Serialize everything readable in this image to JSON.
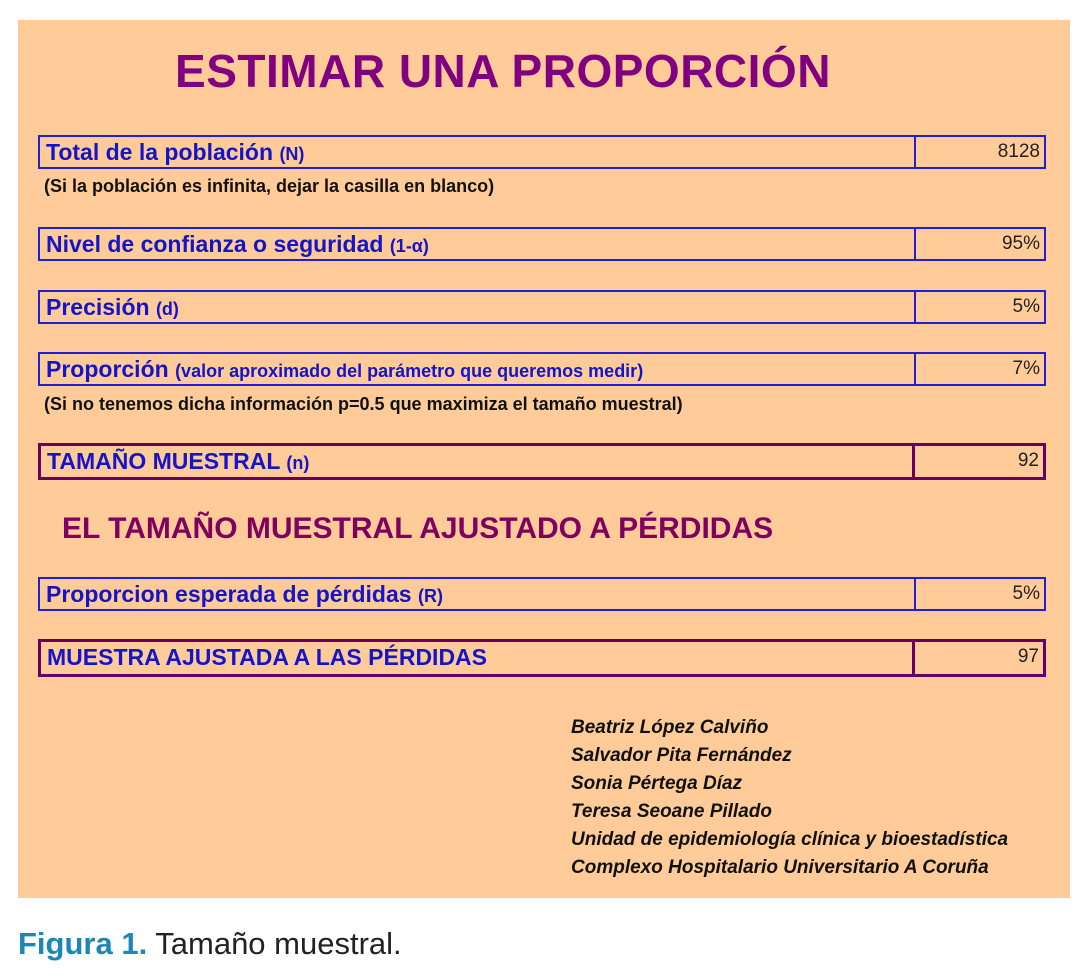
{
  "title": "ESTIMAR UNA PROPORCIÓN",
  "rows": [
    {
      "label": "Total de la población",
      "param": "(N)",
      "value": "8128"
    },
    {
      "label": "Nivel de confianza o seguridad",
      "param": "(1-α)",
      "value": "95%"
    },
    {
      "label": "Precisión",
      "param": "(d)",
      "value": "5%"
    },
    {
      "label": "Proporción",
      "param": "(valor aproximado del parámetro que queremos medir)",
      "value": "7%"
    },
    {
      "label": "TAMAÑO MUESTRAL",
      "param": "(n)",
      "value": "92"
    },
    {
      "label": "Proporcion esperada de pérdidas",
      "param": "(R)",
      "value": "5%"
    },
    {
      "label": "MUESTRA AJUSTADA A LAS PÉRDIDAS",
      "param": "",
      "value": "97"
    }
  ],
  "notes": {
    "population": "(Si la población es infinita, dejar la casilla en blanco)",
    "proportion": "(Si no tenemos dicha información p=0.5 que maximiza el tamaño muestral)"
  },
  "subtitle": "EL TAMAÑO MUESTRAL AJUSTADO A PÉRDIDAS",
  "authors": [
    "Beatriz López Calviño",
    "Salvador Pita Fernández",
    "Sonia Pértega Díaz",
    "Teresa Seoane Pillado",
    "Unidad de epidemiología clínica y bioestadística",
    "Complexo Hospitalario Universitario A Coruña"
  ],
  "caption": {
    "figure": "Figura 1.",
    "text": "Tamaño muestral."
  },
  "colors": {
    "background": "#FFCC99",
    "title": "#800080",
    "label": "#1414C8",
    "input_border": "#1F1FD6",
    "result_border": "#660066",
    "caption_accent": "#1B86B8"
  }
}
